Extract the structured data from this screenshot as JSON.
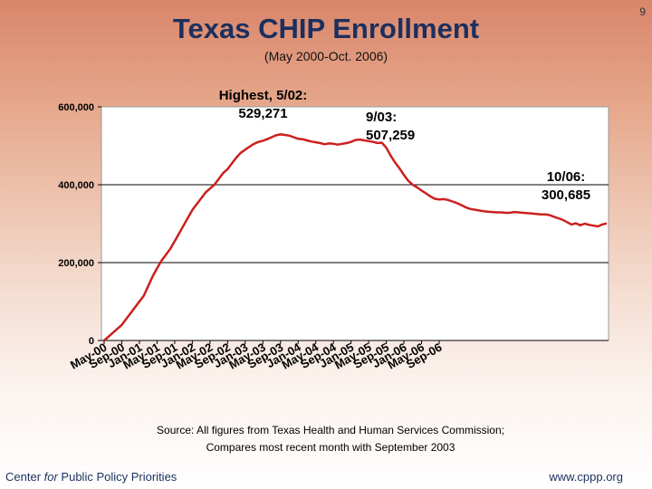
{
  "slide_number": "9",
  "footer": {
    "org_italic": "for",
    "org_before": "Center ",
    "org_after": " Public Policy Priorities",
    "url": "www.cppp.org"
  },
  "source_text": {
    "line1": "Source: All figures from Texas Health and Human Services Commission;",
    "line2": "Compares most recent month with September 2003"
  },
  "chart_data": {
    "type": "line",
    "title": "Texas CHIP Enrollment",
    "subtitle": "(May 2000-Oct. 2006)",
    "xlabel": "",
    "ylabel": "",
    "ylim": [
      0,
      600000
    ],
    "y_ticks": [
      0,
      200000,
      400000,
      600000
    ],
    "y_tick_labels": [
      "0",
      "200,000",
      "400,000",
      "600,000"
    ],
    "grid": "horizontal",
    "x_tick_labels": [
      "May-00",
      "Sep-00",
      "Jan-01",
      "May-01",
      "Sep-01",
      "Jan-02",
      "May-02",
      "Sep-02",
      "Jan-03",
      "May-03",
      "Sep-03",
      "Jan-04",
      "May-04",
      "Sep-04",
      "Jan-05",
      "May-05",
      "Sep-05",
      "Jan-06",
      "May-06",
      "Sep-06"
    ],
    "line_color": "#cc1f1f",
    "series": [
      {
        "name": "Texas CHIP Enrollment",
        "values": [
          0,
          10000,
          20000,
          30000,
          40000,
          55000,
          70000,
          85000,
          100000,
          115000,
          140000,
          165000,
          185000,
          205000,
          220000,
          235000,
          255000,
          275000,
          295000,
          315000,
          335000,
          350000,
          365000,
          380000,
          390000,
          400000,
          415000,
          430000,
          440000,
          455000,
          470000,
          482000,
          490000,
          498000,
          505000,
          510000,
          513000,
          517000,
          522000,
          527000,
          529271,
          528000,
          526000,
          522000,
          518000,
          517000,
          514000,
          511000,
          509000,
          507000,
          504000,
          506000,
          505000,
          503000,
          505000,
          507000,
          510000,
          515000,
          516000,
          514000,
          512000,
          510000,
          507259,
          508000,
          495000,
          475000,
          457000,
          442000,
          425000,
          410000,
          400000,
          393000,
          385000,
          378000,
          370000,
          364000,
          362000,
          363000,
          361000,
          357000,
          353000,
          348000,
          342000,
          338000,
          336000,
          334000,
          332000,
          331000,
          330000,
          329000,
          329000,
          328000,
          328000,
          330000,
          329000,
          328000,
          327000,
          326000,
          325000,
          324000,
          324000,
          322000,
          318000,
          314000,
          310000,
          304000,
          298000,
          301000,
          296000,
          300000,
          297000,
          295000,
          293000,
          298000,
          300685
        ]
      }
    ],
    "annotations": {
      "peak": {
        "label_bold": "Highest,",
        "label_rest": " 5/02:",
        "value": "529,271"
      },
      "sep03": {
        "label": "9/03:",
        "value": "507,259"
      },
      "oct06": {
        "label": "10/06:",
        "value": "300,685"
      }
    }
  }
}
